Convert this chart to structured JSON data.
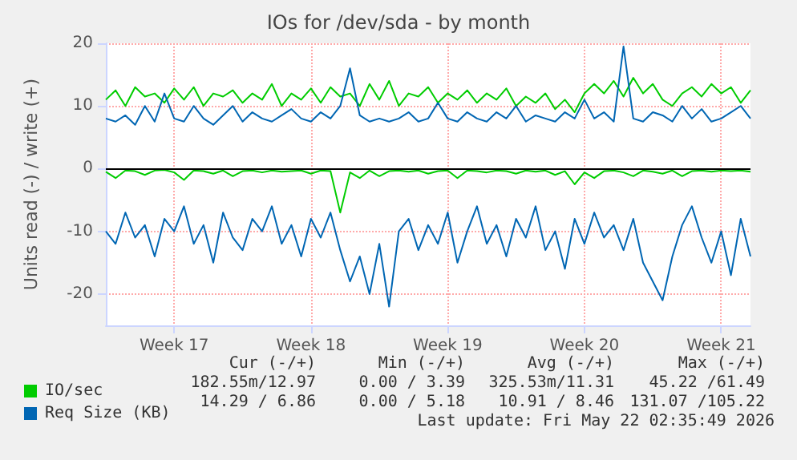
{
  "chart_data": {
    "type": "line",
    "title": "IOs for /dev/sda - by month",
    "ylabel": "Units read (-) / write (+)",
    "categories": [
      null,
      null,
      null,
      null,
      null,
      null,
      null,
      "Week 17",
      null,
      null,
      null,
      null,
      null,
      null,
      null,
      null,
      null,
      null,
      null,
      null,
      null,
      "Week 18",
      null,
      null,
      null,
      null,
      null,
      null,
      null,
      null,
      null,
      null,
      null,
      null,
      null,
      "Week 19",
      null,
      null,
      null,
      null,
      null,
      null,
      null,
      null,
      null,
      null,
      null,
      null,
      null,
      "Week 20",
      null,
      null,
      null,
      null,
      null,
      null,
      null,
      null,
      null,
      null,
      null,
      null,
      null,
      "Week 21",
      null,
      null,
      null
    ],
    "series": [
      {
        "name": "IO/sec",
        "color": "#00cc00",
        "values": [
          11,
          12.5,
          10,
          13,
          11.5,
          12,
          10.5,
          12.8,
          11,
          13,
          10,
          12,
          11.5,
          12.5,
          10.5,
          12,
          11,
          13.5,
          10,
          12,
          11,
          12.8,
          10.5,
          13,
          11.5,
          12,
          10,
          13.5,
          11,
          14,
          10,
          12,
          11.5,
          13,
          10.5,
          12,
          11,
          12.5,
          10.5,
          12,
          11,
          12.8,
          10,
          11.5,
          10.5,
          12,
          9.5,
          11,
          9,
          12,
          13.5,
          12,
          14,
          11.5,
          14.5,
          12,
          13.5,
          11,
          10,
          12,
          13,
          11.5,
          13.5,
          12,
          13,
          10.5,
          12.5
        ]
      },
      {
        "color": "#00cc00",
        "values": [
          -0.5,
          -1.5,
          -0.3,
          -0.4,
          -1,
          -0.3,
          -0.2,
          -0.6,
          -1.8,
          -0.3,
          -0.4,
          -0.8,
          -0.3,
          -1.2,
          -0.4,
          -0.3,
          -0.6,
          -0.3,
          -0.5,
          -0.4,
          -0.3,
          -0.8,
          -0.3,
          -0.4,
          -7,
          -0.6,
          -1.5,
          -0.3,
          -1.2,
          -0.4,
          -0.3,
          -0.5,
          -0.3,
          -0.8,
          -0.4,
          -0.3,
          -1.5,
          -0.3,
          -0.4,
          -0.6,
          -0.3,
          -0.4,
          -0.8,
          -0.3,
          -0.5,
          -0.3,
          -1,
          -0.4,
          -2.5,
          -0.6,
          -1.5,
          -0.4,
          -0.3,
          -0.6,
          -1.2,
          -0.3,
          -0.5,
          -0.8,
          -0.3,
          -1.2,
          -0.4,
          -0.3,
          -0.5,
          -0.3,
          -0.4,
          -0.3,
          -0.5
        ]
      },
      {
        "name": "Req Size (KB)",
        "color": "#0066b3",
        "values": [
          8,
          7.5,
          8.5,
          7,
          10,
          7.5,
          12,
          8,
          7.5,
          10,
          8,
          7,
          8.5,
          10,
          7.5,
          9,
          8,
          7.5,
          8.5,
          9.5,
          8,
          7.5,
          9,
          8,
          10,
          16,
          8.5,
          7.5,
          8,
          7.5,
          8,
          9,
          7.5,
          8,
          10.5,
          8,
          7.5,
          9,
          8,
          7.5,
          9,
          8,
          10,
          7.5,
          8.5,
          8,
          7.5,
          9,
          8,
          11,
          8,
          9,
          7.5,
          19.5,
          8,
          7.5,
          9,
          8.5,
          7.5,
          10,
          8,
          9.5,
          7.5,
          8,
          9,
          10,
          8
        ]
      },
      {
        "color": "#0066b3",
        "values": [
          -10,
          -12,
          -7,
          -11,
          -9,
          -14,
          -8,
          -10,
          -6,
          -12,
          -9,
          -15,
          -7,
          -11,
          -13,
          -8,
          -10,
          -6,
          -12,
          -9,
          -14,
          -8,
          -11,
          -7,
          -13,
          -18,
          -14,
          -20,
          -12,
          -22,
          -10,
          -8,
          -13,
          -9,
          -12,
          -7,
          -15,
          -10,
          -6,
          -12,
          -9,
          -14,
          -8,
          -11,
          -6,
          -13,
          -10,
          -16,
          -8,
          -12,
          -7,
          -11,
          -9,
          -13,
          -8,
          -15,
          -18,
          -21,
          -14,
          -9,
          -6,
          -11,
          -15,
          -10,
          -17,
          -8,
          -14
        ]
      }
    ],
    "ylim": [
      -25,
      20
    ],
    "yticks": [
      -20,
      -10,
      0,
      10,
      20
    ],
    "ref_lines": [
      {
        "axis": "y",
        "value": 0,
        "color": "#000000"
      }
    ],
    "grid": true,
    "legend": "bottom left",
    "marker": "none",
    "line_style": "solid",
    "annotations": [
      "Cur (-/+)",
      "Min (-/+)",
      "Avg (-/+)",
      "Max (-/+)",
      "182.55m/12.97",
      "0.00 / 3.39",
      "325.53m/11.31",
      "45.22 /61.49",
      "14.29 / 6.86",
      "0.00 / 5.18",
      "10.91 / 8.46",
      "131.07 /105.22",
      "Last update: Fri May 22 02:35:49 2026"
    ]
  }
}
